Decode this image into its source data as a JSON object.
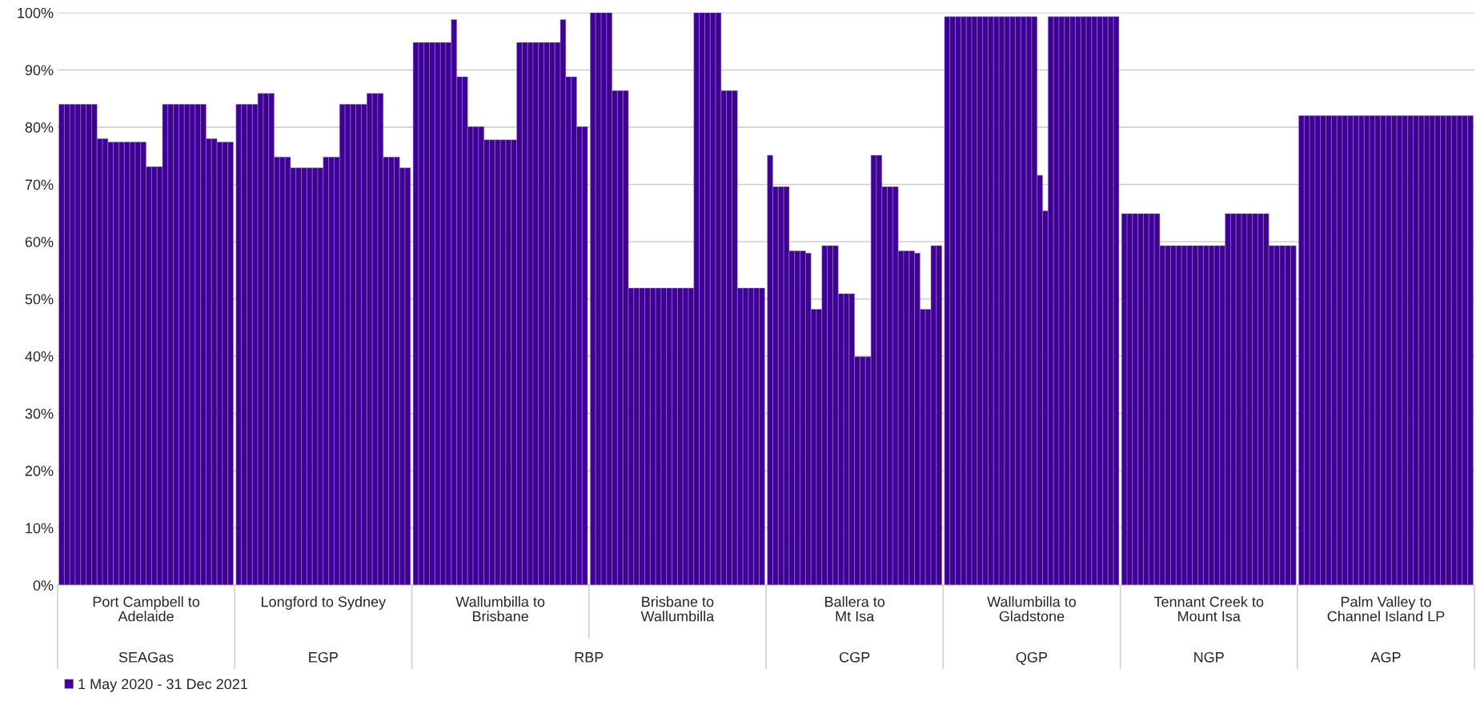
{
  "chart_data": {
    "type": "bar",
    "categories": [
      "Port Campbell to\nAdelaide",
      "Longford to Sydney",
      "Wallumbilla to\nBrisbane",
      "Brisbane to\nWallumbilla",
      "Ballera to\nMt Isa",
      "Wallumbilla to\nGladstone",
      "Tennant Creek to\nMount Isa",
      "Palm Valley to\nChannel Island LP"
    ],
    "series": [
      {
        "name": "1 May 2020 - 31 Dec 2021",
        "color": "#3f0096",
        "values": [
          84,
          84,
          94.8,
          100,
          75.1,
          99.3,
          64.9,
          82
        ]
      },
      {
        "color": "#3f0096",
        "values": [
          84,
          84,
          94.8,
          100,
          69.6,
          99.3,
          64.9,
          82
        ]
      },
      {
        "color": "#3f0096",
        "values": [
          84,
          84,
          94.8,
          100,
          69.6,
          99.3,
          64.9,
          82
        ]
      },
      {
        "color": "#3f0096",
        "values": [
          84,
          84,
          94.8,
          100,
          69.6,
          99.3,
          64.9,
          82
        ]
      },
      {
        "color": "#3f0096",
        "values": [
          84,
          85.9,
          94.8,
          86.4,
          58.4,
          99.3,
          64.9,
          82
        ]
      },
      {
        "color": "#3f0096",
        "values": [
          84,
          85.9,
          94.8,
          86.4,
          58.4,
          99.3,
          64.9,
          82
        ]
      },
      {
        "color": "#3f0096",
        "values": [
          84,
          85.9,
          94.8,
          86.4,
          58.4,
          99.3,
          64.9,
          82
        ]
      },
      {
        "color": "#3f0096",
        "values": [
          78,
          74.8,
          98.8,
          51.9,
          58.0,
          99.3,
          59.3,
          82
        ]
      },
      {
        "color": "#3f0096",
        "values": [
          78,
          74.8,
          88.8,
          51.9,
          48.2,
          99.3,
          59.3,
          82
        ]
      },
      {
        "color": "#3f0096",
        "values": [
          77.4,
          74.8,
          88.8,
          51.9,
          48.2,
          99.3,
          59.3,
          82
        ]
      },
      {
        "color": "#3f0096",
        "values": [
          77.4,
          72.9,
          80.1,
          51.9,
          59.3,
          99.3,
          59.3,
          82
        ]
      },
      {
        "color": "#3f0096",
        "values": [
          77.4,
          72.9,
          80.1,
          51.9,
          59.3,
          99.3,
          59.3,
          82
        ]
      },
      {
        "color": "#3f0096",
        "values": [
          77.4,
          72.9,
          80.1,
          51.9,
          59.3,
          99.3,
          59.3,
          82
        ]
      },
      {
        "color": "#3f0096",
        "values": [
          77.4,
          72.9,
          77.8,
          51.9,
          50.9,
          99.3,
          59.3,
          82
        ]
      },
      {
        "color": "#3f0096",
        "values": [
          77.4,
          72.9,
          77.8,
          51.9,
          50.9,
          99.3,
          59.3,
          82
        ]
      },
      {
        "color": "#3f0096",
        "values": [
          77.4,
          72.9,
          77.8,
          51.9,
          50.9,
          99.3,
          59.3,
          82
        ]
      },
      {
        "color": "#3f0096",
        "values": [
          73.1,
          74.8,
          77.8,
          51.9,
          39.9,
          99.3,
          59.3,
          82
        ]
      },
      {
        "color": "#3f0096",
        "values": [
          73.1,
          74.8,
          77.8,
          51.9,
          39.9,
          71.6,
          59.3,
          82
        ]
      },
      {
        "color": "#3f0096",
        "values": [
          73.1,
          74.8,
          77.8,
          51.9,
          39.9,
          65.4,
          59.3,
          82
        ]
      },
      {
        "color": "#3f0096",
        "values": [
          84,
          84,
          94.8,
          100,
          75.1,
          99.3,
          64.9,
          82
        ]
      },
      {
        "color": "#3f0096",
        "values": [
          84,
          84,
          94.8,
          100,
          75.1,
          99.3,
          64.9,
          82
        ]
      },
      {
        "color": "#3f0096",
        "values": [
          84,
          84,
          94.8,
          100,
          69.6,
          99.3,
          64.9,
          82
        ]
      },
      {
        "color": "#3f0096",
        "values": [
          84,
          84,
          94.8,
          100,
          69.6,
          99.3,
          64.9,
          82
        ]
      },
      {
        "color": "#3f0096",
        "values": [
          84,
          84,
          94.8,
          100,
          69.6,
          99.3,
          64.9,
          82
        ]
      },
      {
        "color": "#3f0096",
        "values": [
          84,
          85.9,
          94.8,
          86.4,
          58.4,
          99.3,
          64.9,
          82
        ]
      },
      {
        "color": "#3f0096",
        "values": [
          84,
          85.9,
          94.8,
          86.4,
          58.4,
          99.3,
          64.9,
          82
        ]
      },
      {
        "color": "#3f0096",
        "values": [
          84,
          85.9,
          94.8,
          86.4,
          58.4,
          99.3,
          64.9,
          82
        ]
      },
      {
        "color": "#3f0096",
        "values": [
          78,
          74.8,
          98.8,
          51.9,
          58.0,
          99.3,
          59.3,
          82
        ]
      },
      {
        "color": "#3f0096",
        "values": [
          78,
          74.8,
          88.8,
          51.9,
          48.2,
          99.3,
          59.3,
          82
        ]
      },
      {
        "color": "#3f0096",
        "values": [
          77.4,
          74.8,
          88.8,
          51.9,
          48.2,
          99.3,
          59.3,
          82
        ]
      },
      {
        "color": "#3f0096",
        "values": [
          77.4,
          72.9,
          80.1,
          51.9,
          59.3,
          99.3,
          59.3,
          82
        ]
      },
      {
        "color": "#3f0096",
        "values": [
          77.4,
          72.9,
          80.1,
          51.9,
          59.3,
          99.3,
          59.3,
          82
        ]
      }
    ],
    "annotations": [
      "SEAGas",
      "EGP",
      "RBP",
      "CGP",
      "QGP",
      "NGP",
      "AGP"
    ],
    "ylim": [
      0,
      100
    ],
    "yticks": [
      {
        "value": 0,
        "label": "0%"
      },
      {
        "value": 10,
        "label": "10%"
      },
      {
        "value": 20,
        "label": "20%"
      },
      {
        "value": 30,
        "label": "30%"
      },
      {
        "value": 40,
        "label": "40%"
      },
      {
        "value": 50,
        "label": "50%"
      },
      {
        "value": 60,
        "label": "60%"
      },
      {
        "value": 70,
        "label": "70%"
      },
      {
        "value": 80,
        "label": "80%"
      },
      {
        "value": 90,
        "label": "90%"
      },
      {
        "value": 100,
        "label": "100%"
      }
    ],
    "grid": "y",
    "legend": "bottom left"
  }
}
